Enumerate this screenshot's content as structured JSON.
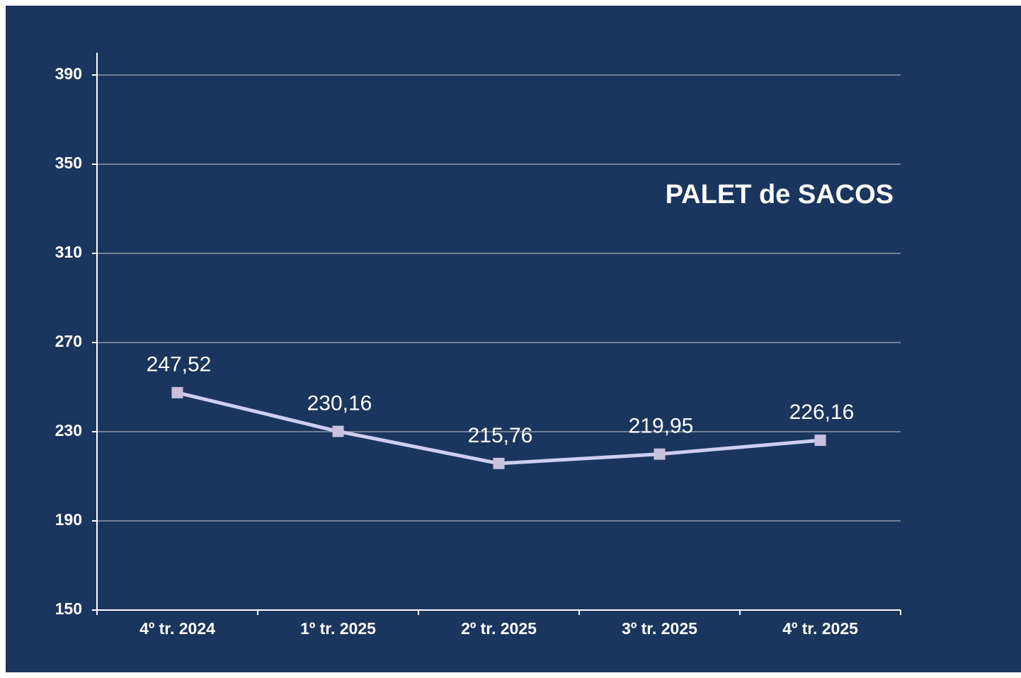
{
  "chart_data": {
    "type": "line",
    "title": "PALET de SACOS",
    "categories": [
      "4º tr. 2024",
      "1º tr. 2025",
      "2º tr. 2025",
      "3º tr. 2025",
      "4º tr. 2025"
    ],
    "series": [
      {
        "name": "PALET de SACOS",
        "color": "#d0ccf2",
        "marker_color": "#c9c0dc",
        "values": [
          247.52,
          230.16,
          215.76,
          219.95,
          226.16
        ],
        "value_labels": [
          "247,52",
          "230,16",
          "215,76",
          "219,95",
          "226,16"
        ]
      }
    ],
    "ylim": [
      150,
      400
    ],
    "yticks": [
      150,
      190,
      230,
      270,
      310,
      350,
      390
    ],
    "grid": true
  }
}
